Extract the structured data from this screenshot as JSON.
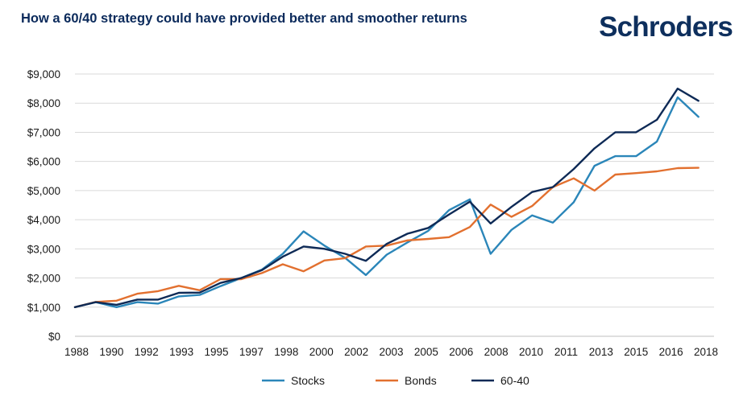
{
  "header": {
    "title": "How a 60/40 strategy could have provided better and smoother returns",
    "brand": "Schroders"
  },
  "chart_data": {
    "type": "line",
    "title": "How a 60/40 strategy could have provided better and smoother returns",
    "xlabel": "",
    "ylabel": "",
    "x_tick_labels": [
      "1988",
      "1990",
      "1992",
      "1993",
      "1995",
      "1997",
      "1998",
      "2000",
      "2002",
      "2003",
      "2005",
      "2006",
      "2008",
      "2010",
      "2011",
      "2013",
      "2015",
      "2016",
      "2018"
    ],
    "y_tick_labels": [
      "$0",
      "$1,000",
      "$2,000",
      "$3,000",
      "$4,000",
      "$5,000",
      "$6,000",
      "$7,000",
      "$8,000",
      "$9,000"
    ],
    "y_ticks": [
      0,
      1000,
      2000,
      3000,
      4000,
      5000,
      6000,
      7000,
      8000,
      9000
    ],
    "ylim": [
      0,
      9000
    ],
    "xlim": [
      1988.0,
      2018.75
    ],
    "grid": "horizontal",
    "legend_position": "bottom",
    "x": [
      1988.0,
      1989.0,
      1990.0,
      1991.0,
      1992.0,
      1993.0,
      1994.0,
      1995.0,
      1996.0,
      1997.0,
      1998.0,
      1999.0,
      2000.0,
      2001.0,
      2002.0,
      2003.0,
      2004.0,
      2005.0,
      2006.0,
      2007.0,
      2008.0,
      2009.0,
      2010.0,
      2011.0,
      2012.0,
      2013.0,
      2014.0,
      2015.0,
      2016.0,
      2017.0,
      2018.0
    ],
    "series": [
      {
        "name": "Stocks",
        "color": "#2b86b9",
        "values": [
          1000,
          1170,
          1000,
          1170,
          1120,
          1370,
          1420,
          1720,
          2000,
          2290,
          2830,
          3600,
          3110,
          2690,
          2100,
          2800,
          3220,
          3620,
          4330,
          4700,
          2830,
          3650,
          4150,
          3900,
          4600,
          5850,
          6180,
          6180,
          6680,
          8200,
          7530
        ]
      },
      {
        "name": "Bonds",
        "color": "#e2702f",
        "values": [
          1000,
          1180,
          1220,
          1460,
          1550,
          1730,
          1580,
          1960,
          1960,
          2170,
          2470,
          2230,
          2600,
          2680,
          3080,
          3110,
          3290,
          3340,
          3400,
          3750,
          4520,
          4100,
          4470,
          5120,
          5420,
          5000,
          5550,
          5600,
          5660,
          5770,
          5780
        ]
      },
      {
        "name": "60-40",
        "color": "#0e2a56",
        "values": [
          1000,
          1170,
          1080,
          1260,
          1260,
          1490,
          1500,
          1830,
          2000,
          2270,
          2730,
          3080,
          3000,
          2830,
          2590,
          3170,
          3520,
          3720,
          4180,
          4620,
          3870,
          4440,
          4950,
          5120,
          5740,
          6450,
          7000,
          7000,
          7430,
          8500,
          8080
        ]
      }
    ]
  }
}
